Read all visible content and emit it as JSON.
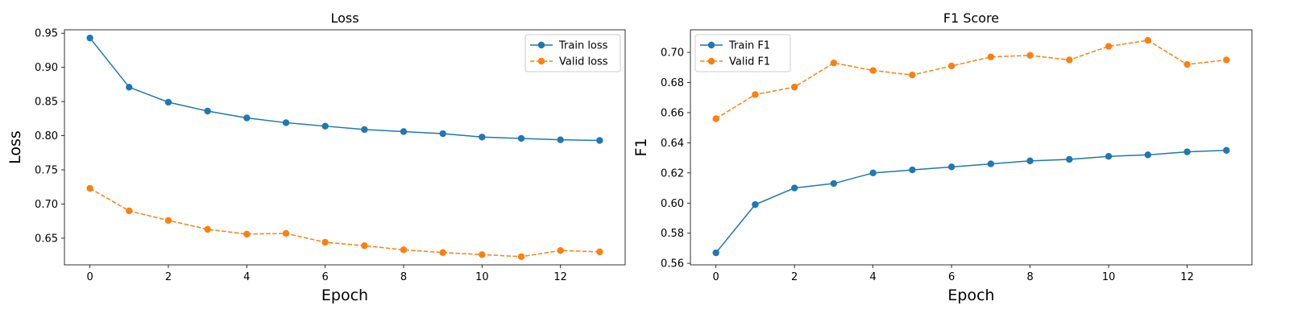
{
  "chart_data": [
    {
      "type": "line",
      "title": "Loss",
      "xlabel": "Epoch",
      "ylabel": "Loss",
      "x": [
        0,
        1,
        2,
        3,
        4,
        5,
        6,
        7,
        8,
        9,
        10,
        11,
        12,
        13
      ],
      "xticks": [
        0,
        2,
        4,
        6,
        8,
        10,
        12
      ],
      "xlim": [
        -0.65,
        13.65
      ],
      "yticks": [
        0.65,
        0.7,
        0.75,
        0.8,
        0.85,
        0.9,
        0.95
      ],
      "ytick_labels": [
        "0.65",
        "0.70",
        "0.75",
        "0.80",
        "0.85",
        "0.90",
        "0.95"
      ],
      "ylim": [
        0.611,
        0.955
      ],
      "grid": false,
      "legend_position": "top-right",
      "series": [
        {
          "name": "Train loss",
          "color": "#1f77b4",
          "linestyle": "solid",
          "marker": "circle",
          "values": [
            0.943,
            0.871,
            0.849,
            0.836,
            0.826,
            0.819,
            0.814,
            0.809,
            0.806,
            0.803,
            0.798,
            0.796,
            0.794,
            0.793
          ]
        },
        {
          "name": "Valid loss",
          "color": "#ff7f0e",
          "linestyle": "dashed",
          "marker": "circle",
          "values": [
            0.723,
            0.69,
            0.676,
            0.663,
            0.656,
            0.657,
            0.644,
            0.639,
            0.633,
            0.629,
            0.626,
            0.623,
            0.632,
            0.63
          ]
        }
      ]
    },
    {
      "type": "line",
      "title": "F1 Score",
      "xlabel": "Epoch",
      "ylabel": "F1",
      "x": [
        0,
        1,
        2,
        3,
        4,
        5,
        6,
        7,
        8,
        9,
        10,
        11,
        12,
        13
      ],
      "xticks": [
        0,
        2,
        4,
        6,
        8,
        10,
        12
      ],
      "xlim": [
        -0.65,
        13.65
      ],
      "yticks": [
        0.56,
        0.58,
        0.6,
        0.62,
        0.64,
        0.66,
        0.68,
        0.7
      ],
      "ytick_labels": [
        "0.56",
        "0.58",
        "0.60",
        "0.62",
        "0.64",
        "0.66",
        "0.68",
        "0.70"
      ],
      "ylim": [
        0.559,
        0.715
      ],
      "grid": false,
      "legend_position": "top-left",
      "series": [
        {
          "name": "Train F1",
          "color": "#1f77b4",
          "linestyle": "solid",
          "marker": "circle",
          "values": [
            0.567,
            0.599,
            0.61,
            0.613,
            0.62,
            0.622,
            0.624,
            0.626,
            0.628,
            0.629,
            0.631,
            0.632,
            0.634,
            0.635
          ]
        },
        {
          "name": "Valid F1",
          "color": "#ff7f0e",
          "linestyle": "dashed",
          "marker": "circle",
          "values": [
            0.656,
            0.672,
            0.677,
            0.693,
            0.688,
            0.685,
            0.691,
            0.697,
            0.698,
            0.695,
            0.704,
            0.708,
            0.692,
            0.695
          ]
        }
      ]
    }
  ]
}
